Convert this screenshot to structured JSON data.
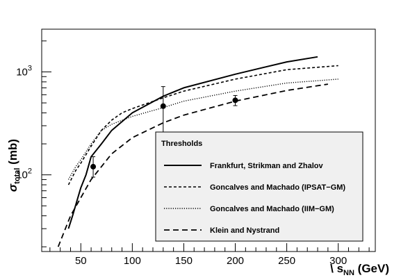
{
  "chart_data": {
    "type": "line",
    "title": "",
    "xlabel": {
      "prefix": "\\ s",
      "sub": "NN",
      "suffix": " (GeV)"
    },
    "ylabel": {
      "sigma": "σ",
      "sub": "total",
      "suffix": " (mb)"
    },
    "xlim": [
      12,
      336
    ],
    "ylim": [
      18,
      2600
    ],
    "ylog": true,
    "grid": false,
    "x_ticks": [
      50,
      100,
      150,
      200,
      250,
      300
    ],
    "x_tick_labels": [
      "50",
      "100",
      "150",
      "200",
      "250",
      "300"
    ],
    "y_ticks": [
      100,
      1000
    ],
    "y_tick_labels": [
      {
        "base": "10",
        "exp": "2"
      },
      {
        "base": "10",
        "exp": "3"
      }
    ],
    "legend": {
      "title": "Thresholds",
      "placement": "lower-right",
      "entries": [
        "Frankfurt, Strikman and Zhalov",
        "Goncalves and Machado (IPSAT−GM)",
        "Goncalves and Machado (IIM−GM)",
        "Klein and Nystrand"
      ]
    },
    "series": [
      {
        "name": "Frankfurt, Strikman and Zhalov",
        "style": "solid",
        "x": [
          38,
          42,
          46,
          50,
          55,
          60,
          70,
          80,
          100,
          130,
          150,
          200,
          250,
          280
        ],
        "y": [
          30,
          40,
          55,
          75,
          100,
          150,
          200,
          270,
          400,
          580,
          700,
          950,
          1250,
          1400
        ]
      },
      {
        "name": "Goncalves and Machado (IPSAT−GM)",
        "style": "dashed-short",
        "x": [
          38,
          45,
          50,
          60,
          70,
          80,
          90,
          100,
          130,
          150,
          200,
          250,
          300
        ],
        "y": [
          80,
          110,
          130,
          190,
          270,
          340,
          400,
          440,
          560,
          650,
          850,
          1050,
          1150
        ]
      },
      {
        "name": "Goncalves and Machado (IIM−GM)",
        "style": "dotted",
        "x": [
          38,
          45,
          50,
          60,
          70,
          80,
          100,
          130,
          150,
          200,
          250,
          300
        ],
        "y": [
          90,
          120,
          140,
          200,
          270,
          310,
          370,
          450,
          520,
          650,
          780,
          850
        ]
      },
      {
        "name": "Klein and Nystrand",
        "style": "dashed-long",
        "x": [
          28,
          35,
          40,
          50,
          60,
          70,
          80,
          100,
          130,
          150,
          200,
          250,
          290
        ],
        "y": [
          20,
          30,
          40,
          60,
          90,
          120,
          160,
          230,
          320,
          380,
          520,
          660,
          760
        ]
      }
    ],
    "points": [
      {
        "x": 62,
        "y": 120,
        "yerr_low": 95,
        "yerr_high": 150
      },
      {
        "x": 130,
        "y": 465,
        "yerr_low": 215,
        "yerr_high": 720
      },
      {
        "x": 200,
        "y": 530,
        "yerr_low": 470,
        "yerr_high": 590
      }
    ]
  }
}
